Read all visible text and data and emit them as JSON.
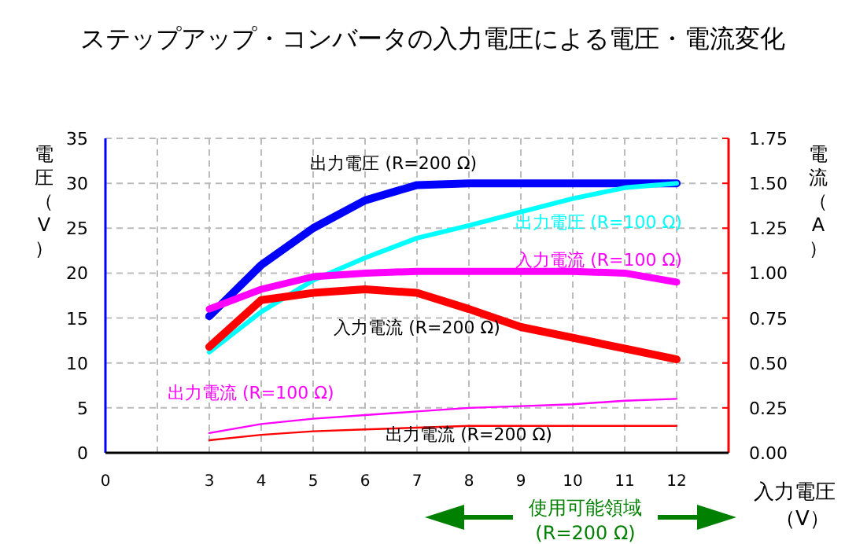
{
  "chart_data": {
    "type": "line",
    "title": "ステップアップ・コンバータの入力電圧による電圧・電流変化",
    "xlabel": "入力電圧（V）",
    "ylabel": "電圧（V）",
    "y2label": "電流（A）",
    "annotations": [
      "使用可能領域 (R=200 Ω)"
    ],
    "categories": [
      "0",
      null,
      "3",
      "4",
      "5",
      "6",
      "7",
      "8",
      "9",
      "10",
      "11",
      "12"
    ],
    "ylim": [
      0,
      35
    ],
    "yticks": [
      0,
      5,
      10,
      15,
      20,
      25,
      30,
      35
    ],
    "y2lim": [
      0,
      1.75
    ],
    "y2ticks": [
      {
        "value": 0,
        "label": "0.00"
      },
      {
        "value": 0.25,
        "label": "0.25"
      },
      {
        "value": 0.5,
        "label": "0.50"
      },
      {
        "value": 0.75,
        "label": "0.75"
      },
      {
        "value": 1,
        "label": "1.00"
      },
      {
        "value": 1.25,
        "label": "1.25"
      },
      {
        "value": 1.5,
        "label": "1.50"
      },
      {
        "value": 1.75,
        "label": "1.75"
      }
    ],
    "grid": true,
    "series": [
      {
        "name": "出力電圧 (R=200 Ω)",
        "color": "#0000ff",
        "values": [
          null,
          null,
          15.2,
          20.9,
          25.0,
          28.1,
          29.8,
          30,
          30,
          30,
          30,
          30
        ]
      },
      {
        "name": "出力電圧 (R=100 Ω)",
        "color": "#00ffff",
        "values": [
          null,
          null,
          11.2,
          15.7,
          19.2,
          21.7,
          23.9,
          25.3,
          26.8,
          28.3,
          29.5,
          30
        ]
      },
      {
        "name": "入力電流 (R=100 Ω)",
        "color": "#ff00ff",
        "axis": "y2",
        "values": [
          null,
          null,
          0.8,
          0.91,
          0.98,
          1.0,
          1.01,
          1.01,
          1.01,
          1.01,
          1.0,
          0.95
        ]
      },
      {
        "name": "入力電流 (R=200 Ω)",
        "color": "#ff0000",
        "axis": "y2",
        "values": [
          null,
          null,
          0.59,
          0.85,
          0.89,
          0.91,
          0.89,
          0.8,
          0.7,
          0.64,
          0.58,
          0.52
        ]
      },
      {
        "name": "出力電流 (R=100 Ω)",
        "color": "#ff00ff",
        "axis": "y2",
        "values": [
          null,
          null,
          0.11,
          0.16,
          0.19,
          0.21,
          0.23,
          0.25,
          0.26,
          0.27,
          0.29,
          0.3
        ]
      },
      {
        "name": "出力電流 (R=200 Ω)",
        "color": "#ff0000",
        "axis": "y2",
        "values": [
          null,
          null,
          0.07,
          0.1,
          0.12,
          0.13,
          0.14,
          0.15,
          0.15,
          0.15,
          0.15,
          0.15
        ]
      }
    ]
  }
}
